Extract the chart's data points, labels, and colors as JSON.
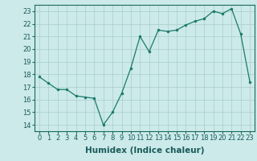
{
  "x_data": [
    0,
    1,
    2,
    3,
    4,
    5,
    6,
    7,
    8,
    9,
    10,
    11,
    12,
    13,
    14,
    15,
    16,
    17,
    18,
    19,
    20,
    21,
    22,
    23
  ],
  "y_data": [
    17.8,
    17.3,
    16.8,
    16.8,
    16.3,
    16.2,
    16.1,
    14.0,
    15.0,
    16.5,
    18.5,
    21.0,
    19.8,
    21.5,
    21.4,
    21.5,
    21.9,
    22.2,
    22.4,
    23.0,
    22.8,
    23.2,
    21.2,
    17.4
  ],
  "line_color": "#1a7a6a",
  "marker_color": "#1a7a6a",
  "bg_color": "#cceaea",
  "grid_color": "#aacccc",
  "xlabel": "Humidex (Indice chaleur)",
  "ylim": [
    13.5,
    23.5
  ],
  "xlim": [
    -0.5,
    23.5
  ],
  "yticks": [
    14,
    15,
    16,
    17,
    18,
    19,
    20,
    21,
    22,
    23
  ],
  "xticks": [
    0,
    1,
    2,
    3,
    4,
    5,
    6,
    7,
    8,
    9,
    10,
    11,
    12,
    13,
    14,
    15,
    16,
    17,
    18,
    19,
    20,
    21,
    22,
    23
  ],
  "xlabel_fontsize": 7.5,
  "tick_fontsize": 6.0,
  "tick_color": "#1a6a5a",
  "label_color": "#1a5a5a"
}
